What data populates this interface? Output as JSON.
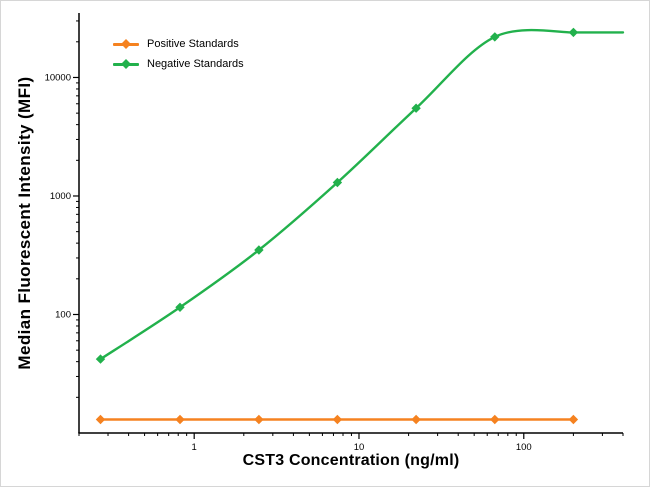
{
  "chart_data": {
    "type": "line",
    "title": "",
    "xlabel": "CST3 Concentration (ng/ml)",
    "ylabel": "Median  Fluorescent Intensity  (MFI)",
    "x_scale": "log",
    "y_scale": "log",
    "xlim": [
      0.2,
      400
    ],
    "ylim": [
      10,
      35000
    ],
    "x_major_ticks": [
      1,
      10,
      100
    ],
    "x_major_tick_labels": [
      "1",
      "10",
      "100"
    ],
    "y_major_ticks": [
      100,
      1000,
      10000
    ],
    "y_major_tick_labels": [
      "100",
      "1000",
      "10000"
    ],
    "grid": false,
    "legend_position": "top-left",
    "series": [
      {
        "name": "Positive Standards",
        "color": "#F58220",
        "marker": "diamond",
        "smooth": false,
        "extend_right": false,
        "x": [
          0.27,
          0.82,
          2.47,
          7.4,
          22.2,
          66.7,
          200
        ],
        "y": [
          13,
          13,
          13,
          13,
          13,
          13,
          13
        ]
      },
      {
        "name": "Negative Standards",
        "color": "#22B14C",
        "marker": "diamond",
        "smooth": true,
        "extend_right": true,
        "x": [
          0.27,
          0.82,
          2.47,
          7.4,
          22.2,
          66.7,
          200
        ],
        "y": [
          42,
          115,
          350,
          1300,
          5500,
          22000,
          24000
        ]
      }
    ]
  }
}
